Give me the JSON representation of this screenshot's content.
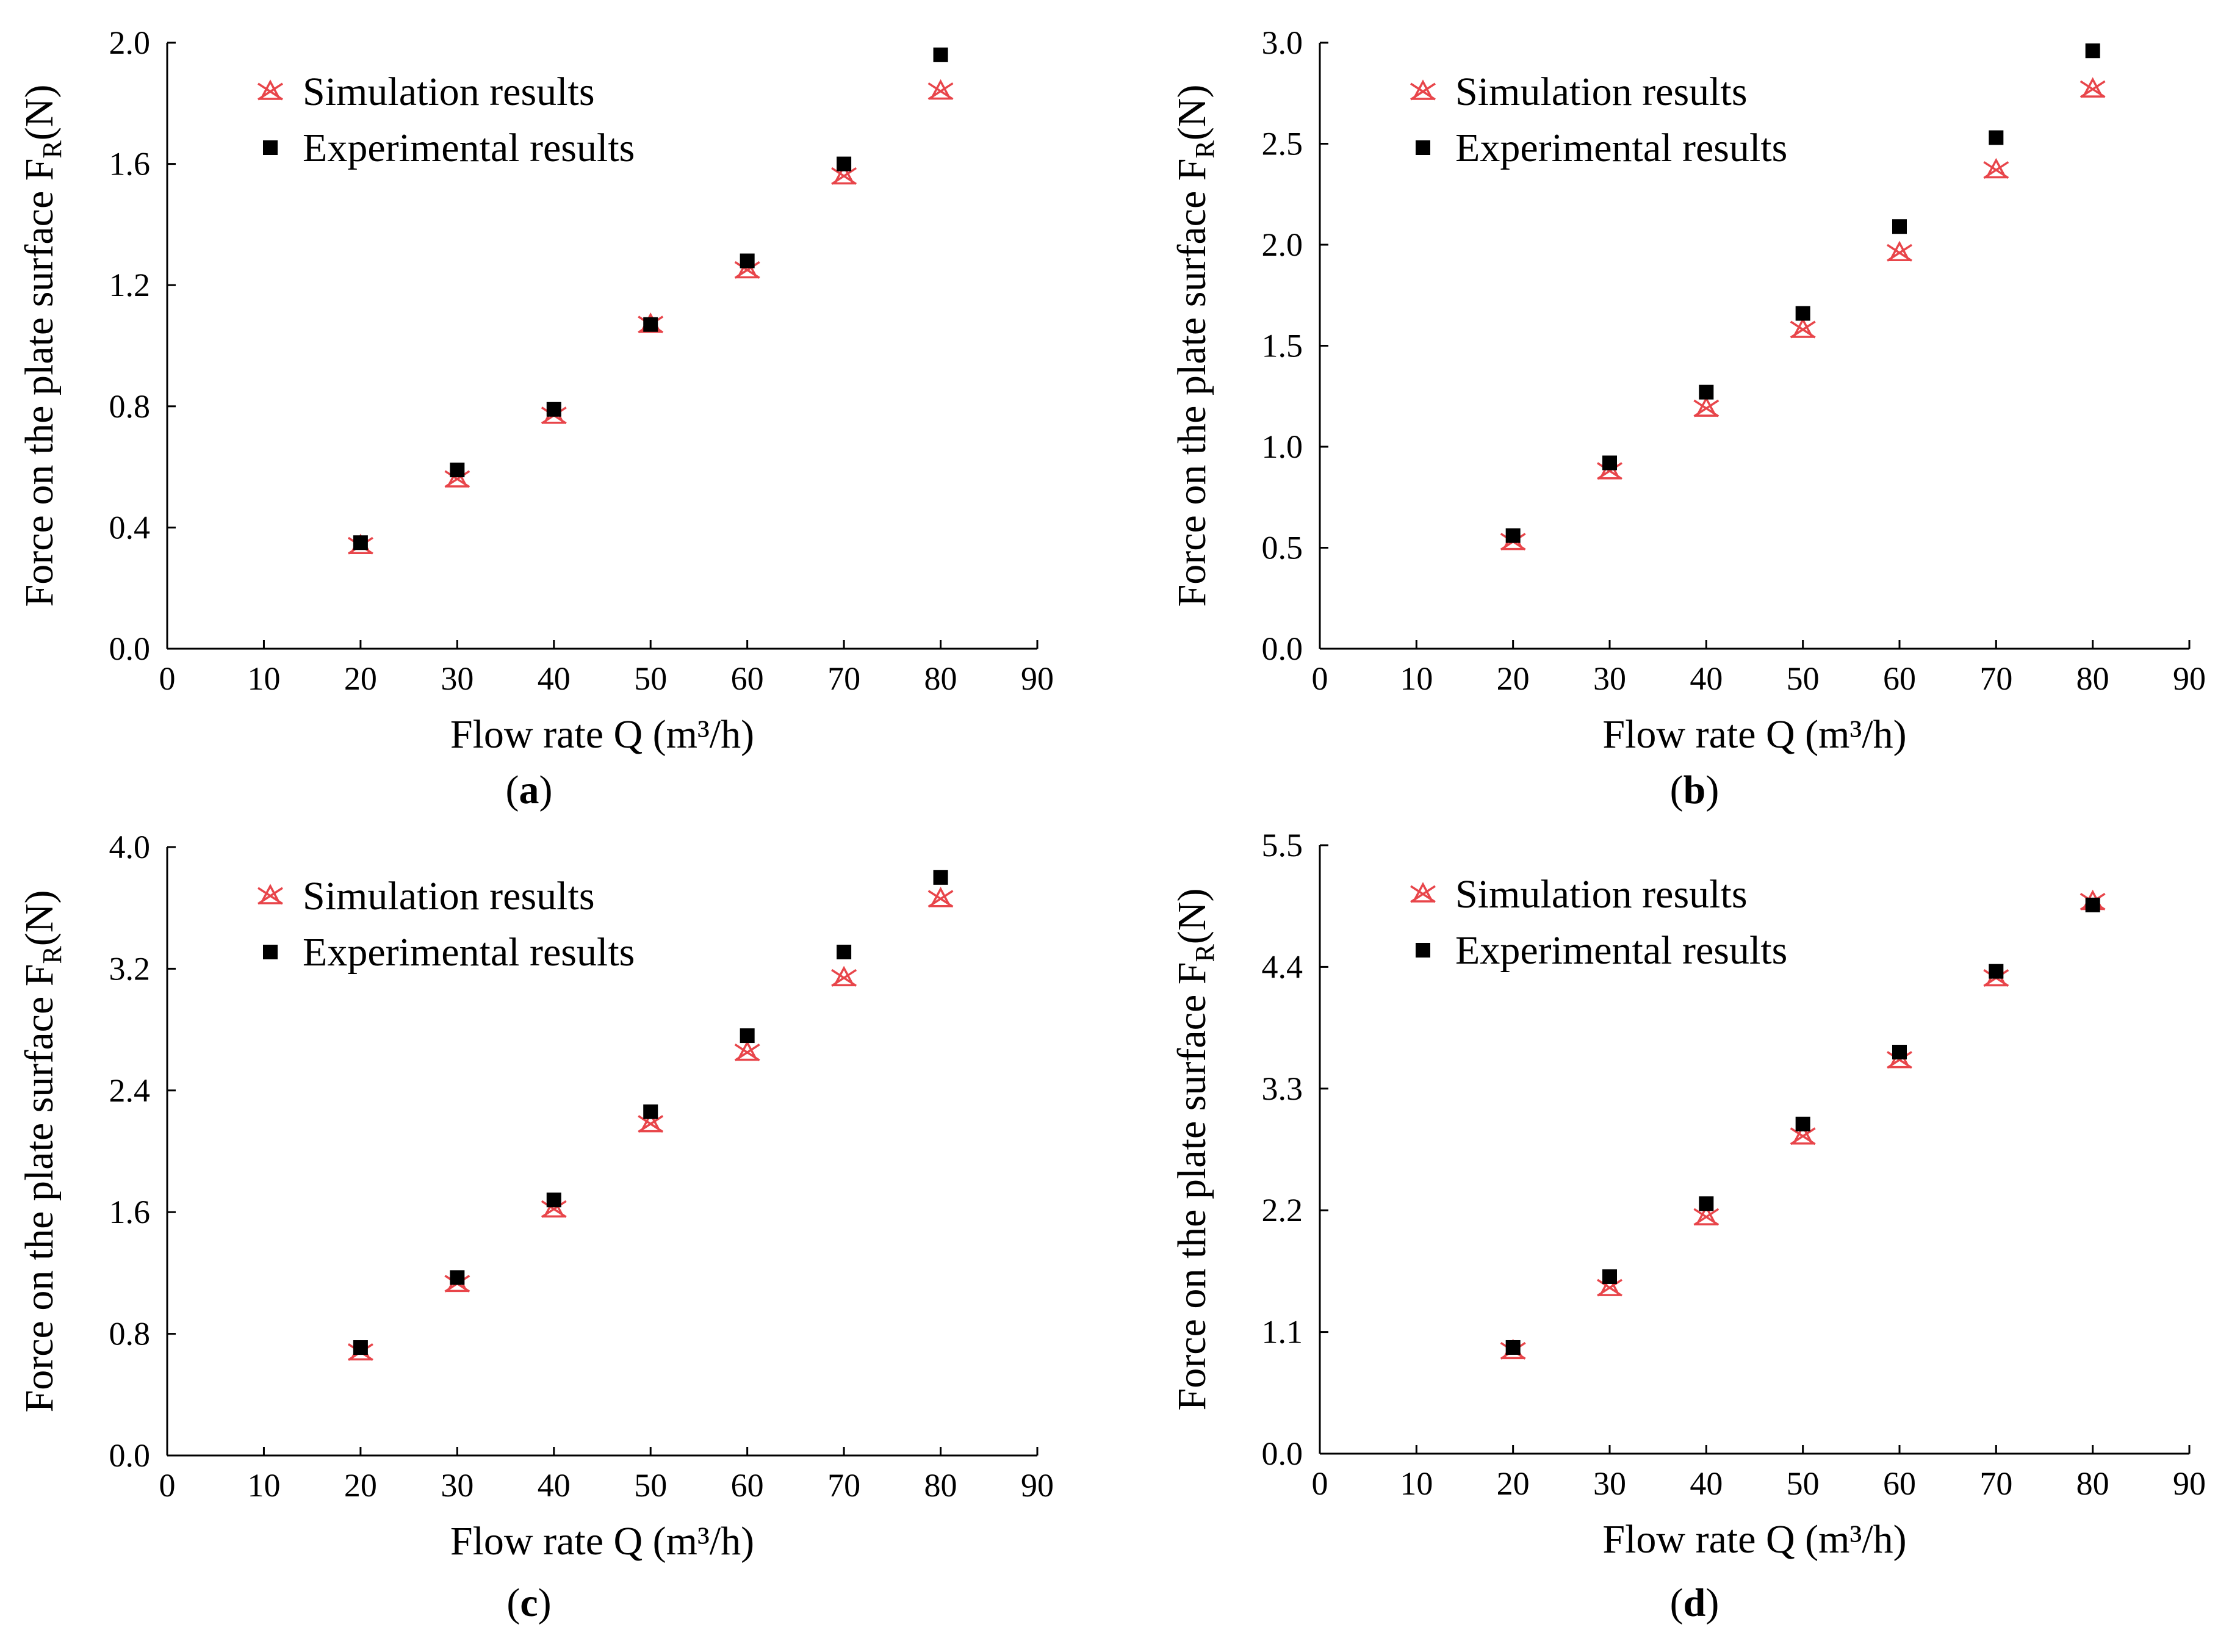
{
  "figure": {
    "colors": {
      "simulation": "#e8454a",
      "experimental": "#000000",
      "axis": "#000000"
    },
    "icons": {
      "simulation": "red-cross-triangle-marker",
      "experimental": "black-square-marker"
    }
  },
  "chart_data": [
    {
      "type": "scatter",
      "panel": "a",
      "caption": "a",
      "xlabel": "Flow rate Q (m³/h)",
      "ylabel": {
        "text": "Force on the plate surface F",
        "sub": "R",
        "suffix": "(N)"
      },
      "xlim": [
        0,
        90
      ],
      "ylim": [
        0,
        2.0
      ],
      "xticks": [
        0,
        10,
        20,
        30,
        40,
        50,
        60,
        70,
        80,
        90
      ],
      "xtick_labels": [
        "0",
        "10",
        "20",
        "30",
        "40",
        "50",
        "60",
        "70",
        "80",
        "90"
      ],
      "yticks": [
        0,
        0.4,
        0.8,
        1.2,
        1.6,
        2.0
      ],
      "ytick_labels": [
        "0.0",
        "0.4",
        "0.8",
        "1.2",
        "1.6",
        "2.0"
      ],
      "legend_position": "top-left",
      "series": [
        {
          "name": "Simulation results",
          "marker": "cross-triangle",
          "x": [
            20,
            30,
            40,
            50,
            60,
            70,
            80
          ],
          "y": [
            0.34,
            0.56,
            0.77,
            1.07,
            1.25,
            1.56,
            1.84
          ]
        },
        {
          "name": "Experimental results",
          "marker": "square",
          "x": [
            20,
            30,
            40,
            50,
            60,
            70,
            80
          ],
          "y": [
            0.35,
            0.59,
            0.79,
            1.07,
            1.28,
            1.6,
            1.96
          ]
        }
      ]
    },
    {
      "type": "scatter",
      "panel": "b",
      "caption": "b",
      "xlabel": "Flow rate Q (m³/h)",
      "ylabel": {
        "text": "Force on the plate surface F",
        "sub": "R",
        "suffix": "(N)"
      },
      "xlim": [
        0,
        90
      ],
      "ylim": [
        0,
        3.0
      ],
      "xticks": [
        0,
        10,
        20,
        30,
        40,
        50,
        60,
        70,
        80,
        90
      ],
      "xtick_labels": [
        "0",
        "10",
        "20",
        "30",
        "40",
        "50",
        "60",
        "70",
        "80",
        "90"
      ],
      "yticks": [
        0,
        0.5,
        1.0,
        1.5,
        2.0,
        2.5,
        3.0
      ],
      "ytick_labels": [
        "0.0",
        "0.5",
        "1.0",
        "1.5",
        "2.0",
        "2.5",
        "3.0"
      ],
      "legend_position": "top-left",
      "series": [
        {
          "name": "Simulation results",
          "marker": "cross-triangle",
          "x": [
            20,
            30,
            40,
            50,
            60,
            70,
            80
          ],
          "y": [
            0.53,
            0.88,
            1.19,
            1.58,
            1.96,
            2.37,
            2.77
          ]
        },
        {
          "name": "Experimental results",
          "marker": "square",
          "x": [
            20,
            30,
            40,
            50,
            60,
            70,
            80
          ],
          "y": [
            0.56,
            0.92,
            1.27,
            1.66,
            2.09,
            2.53,
            2.96
          ]
        }
      ]
    },
    {
      "type": "scatter",
      "panel": "c",
      "caption": "c",
      "xlabel": "Flow rate Q (m³/h)",
      "ylabel": {
        "text": "Force on the plate surface F",
        "sub": "R",
        "suffix": "(N)"
      },
      "xlim": [
        0,
        90
      ],
      "ylim": [
        0,
        4.0
      ],
      "xticks": [
        0,
        10,
        20,
        30,
        40,
        50,
        60,
        70,
        80,
        90
      ],
      "xtick_labels": [
        "0",
        "10",
        "20",
        "30",
        "40",
        "50",
        "60",
        "70",
        "80",
        "90"
      ],
      "yticks": [
        0,
        0.8,
        1.6,
        2.4,
        3.2,
        4.0
      ],
      "ytick_labels": [
        "0.0",
        "0.8",
        "1.6",
        "2.4",
        "3.2",
        "4.0"
      ],
      "legend_position": "top-left",
      "series": [
        {
          "name": "Simulation results",
          "marker": "cross-triangle",
          "x": [
            20,
            30,
            40,
            50,
            60,
            70,
            80
          ],
          "y": [
            0.68,
            1.13,
            1.62,
            2.18,
            2.65,
            3.14,
            3.66
          ]
        },
        {
          "name": "Experimental results",
          "marker": "square",
          "x": [
            20,
            30,
            40,
            50,
            60,
            70,
            80
          ],
          "y": [
            0.71,
            1.17,
            1.68,
            2.26,
            2.76,
            3.31,
            3.8
          ]
        }
      ]
    },
    {
      "type": "scatter",
      "panel": "d",
      "caption": "d",
      "xlabel": "Flow rate Q (m³/h)",
      "ylabel": {
        "text": "Force on the plate surface F",
        "sub": "R",
        "suffix": "(N)"
      },
      "xlim": [
        0,
        90
      ],
      "ylim": [
        0,
        5.5
      ],
      "xticks": [
        0,
        10,
        20,
        30,
        40,
        50,
        60,
        70,
        80,
        90
      ],
      "xtick_labels": [
        "0",
        "10",
        "20",
        "30",
        "40",
        "50",
        "60",
        "70",
        "80",
        "90"
      ],
      "yticks": [
        0,
        1.1,
        2.2,
        3.3,
        4.4,
        5.5
      ],
      "ytick_labels": [
        "0.0",
        "1.1",
        "2.2",
        "3.3",
        "4.4",
        "5.5"
      ],
      "legend_position": "top-left",
      "series": [
        {
          "name": "Simulation results",
          "marker": "cross-triangle",
          "x": [
            20,
            30,
            40,
            50,
            60,
            70,
            80
          ],
          "y": [
            0.93,
            1.5,
            2.14,
            2.87,
            3.56,
            4.3,
            4.99
          ]
        },
        {
          "name": "Experimental results",
          "marker": "square",
          "x": [
            20,
            30,
            40,
            50,
            60,
            70,
            80
          ],
          "y": [
            0.96,
            1.6,
            2.26,
            2.98,
            3.63,
            4.36,
            4.96
          ]
        }
      ]
    }
  ]
}
